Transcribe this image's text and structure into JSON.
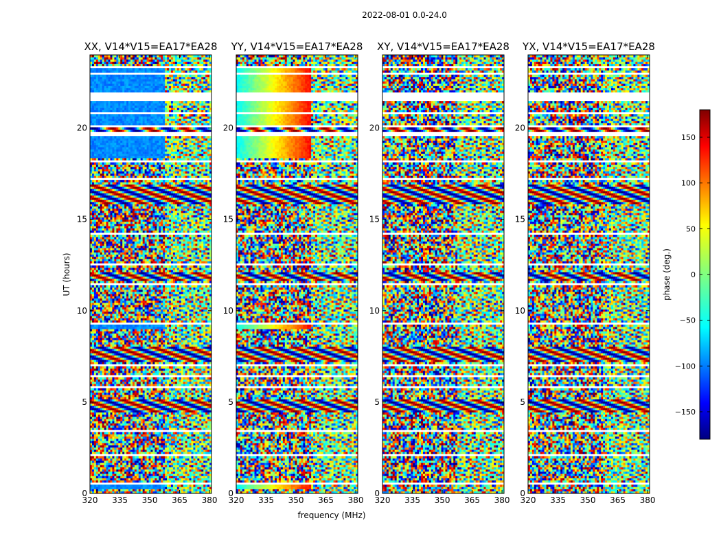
{
  "figure": {
    "suptitle": "2022-08-01 0.0-24.0"
  },
  "chart_data": {
    "type": "heatmap",
    "title": "2022-08-01 0.0-24.0",
    "xlabel": "frequency (MHz)",
    "ylabel": "UT (hours)",
    "xlim": [
      320,
      381
    ],
    "ylim": [
      0,
      24
    ],
    "xticks": [
      320,
      335,
      350,
      365,
      380
    ],
    "yticks": [
      0,
      5,
      10,
      15,
      20
    ],
    "panels": [
      {
        "title": "XX, V14*V15=EA17*EA28",
        "pol": "XX"
      },
      {
        "title": "YY, V14*V15=EA17*EA28",
        "pol": "YY"
      },
      {
        "title": "XY, V14*V15=EA17*EA28",
        "pol": "XY"
      },
      {
        "title": "YX, V14*V15=EA17*EA28",
        "pol": "YX"
      }
    ],
    "colorbar": {
      "label": "phase (deg.)",
      "range": [
        -180,
        180
      ],
      "ticks": [
        -150,
        -100,
        -50,
        0,
        50,
        100,
        150
      ],
      "tick_labels": [
        "−150",
        "−100",
        "−50",
        "0",
        "50",
        "100",
        "150"
      ],
      "colormap": "jet",
      "colors": [
        "#00007f",
        "#0000ff",
        "#0080ff",
        "#00ffff",
        "#80ff80",
        "#ffff00",
        "#ff8000",
        "#ff0000",
        "#7f0000"
      ]
    },
    "flagged_time_ranges_hours": [
      [
        0.1,
        0.15
      ],
      [
        0.45,
        0.55
      ],
      [
        2.0,
        2.1
      ],
      [
        3.4,
        3.5
      ],
      [
        3.95,
        4.0
      ],
      [
        5.8,
        5.85
      ],
      [
        6.0,
        6.05
      ],
      [
        6.4,
        6.45
      ],
      [
        7.0,
        7.05
      ],
      [
        8.15,
        8.2
      ],
      [
        9.3,
        9.35
      ],
      [
        11.4,
        11.5
      ],
      [
        12.5,
        12.55
      ],
      [
        14.2,
        14.25
      ],
      [
        17.2,
        17.3
      ],
      [
        17.5,
        17.55
      ],
      [
        17.85,
        17.9
      ],
      [
        18.15,
        18.2
      ],
      [
        19.55,
        19.75
      ],
      [
        20.1,
        20.15
      ],
      [
        20.8,
        20.85
      ],
      [
        21.5,
        22.0
      ],
      [
        22.9,
        23.0
      ],
      [
        23.3,
        23.35
      ]
    ]
  }
}
